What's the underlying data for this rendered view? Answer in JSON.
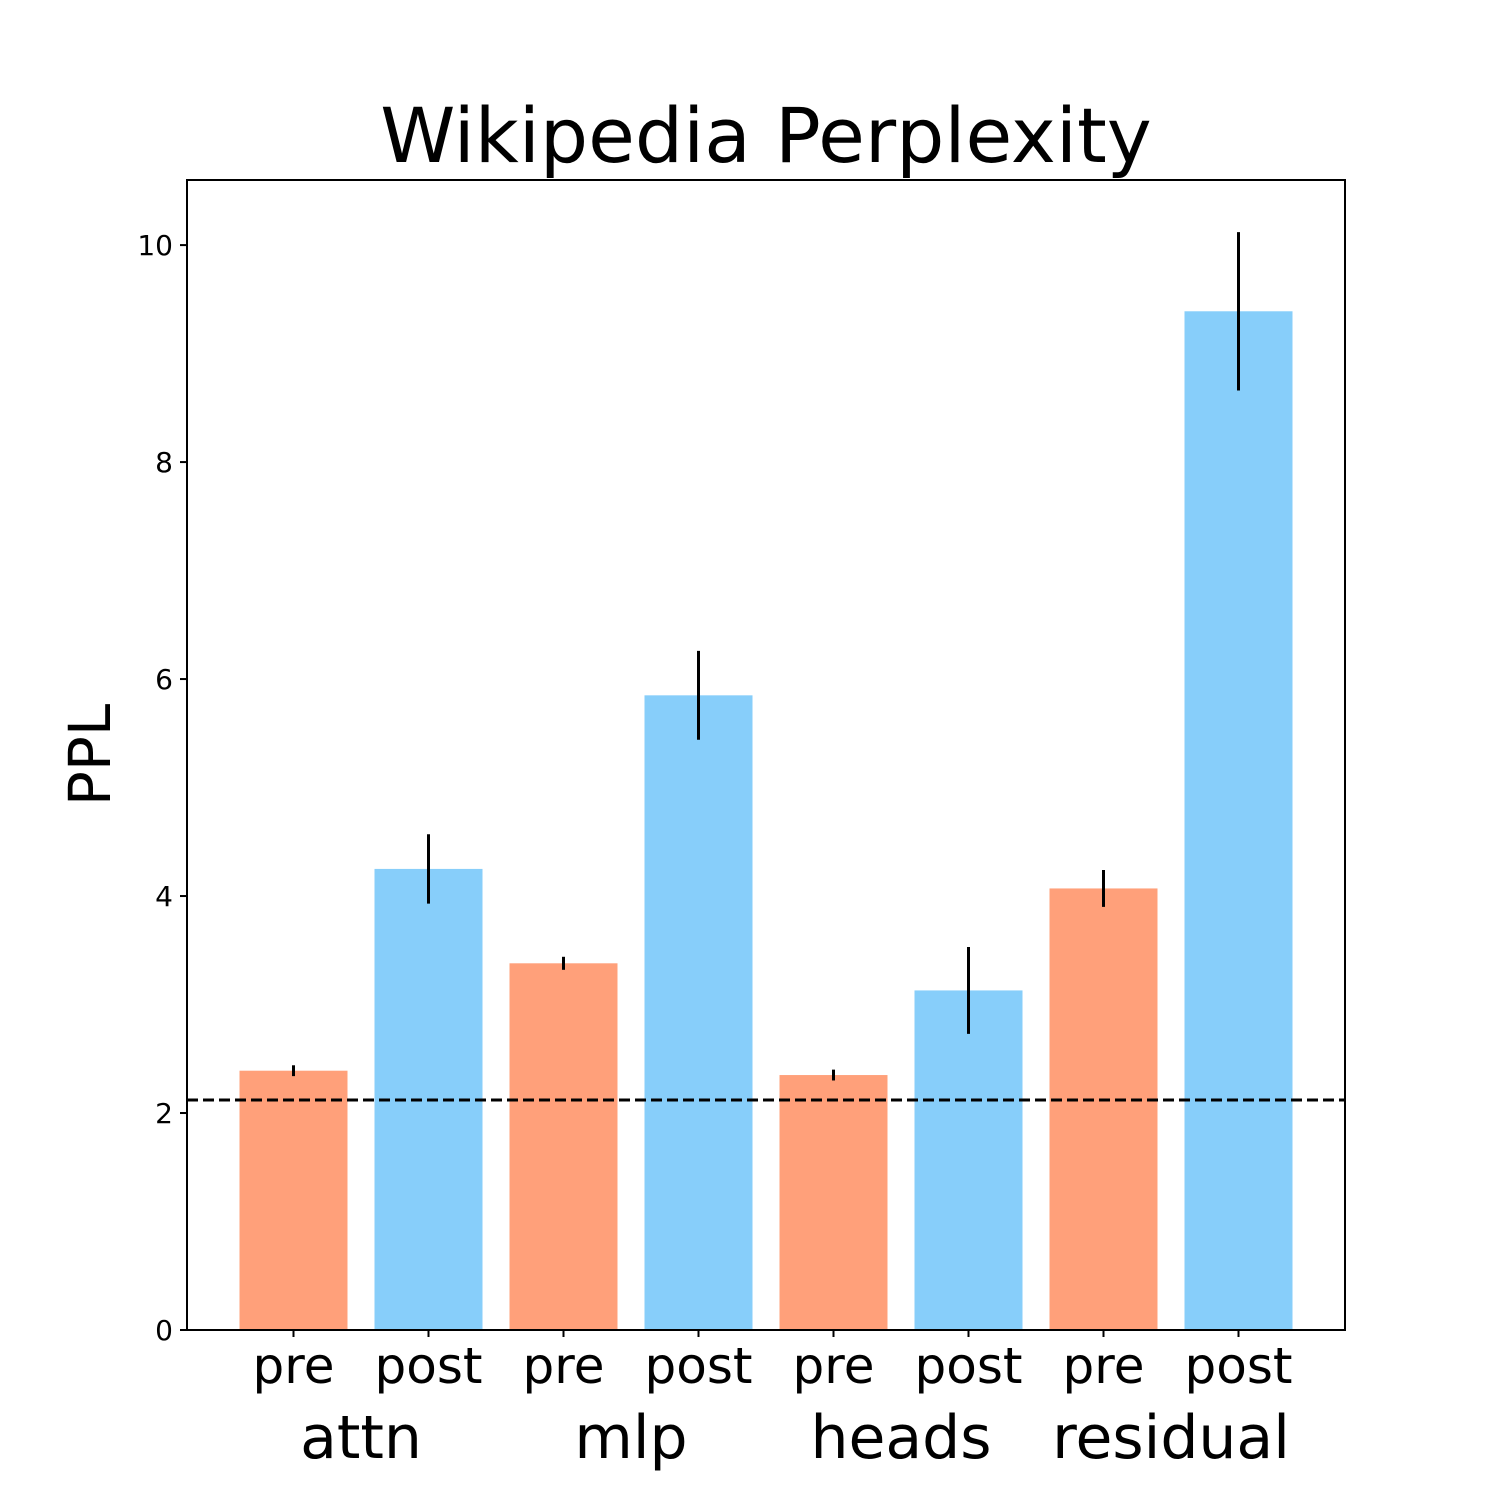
{
  "chart_data": {
    "type": "bar",
    "title": "Wikipedia Perplexity",
    "xlabel": "",
    "ylabel": "PPL",
    "ylim": [
      0,
      10.6
    ],
    "yticks": [
      0,
      2,
      4,
      6,
      8,
      10
    ],
    "grid": false,
    "legend": "none",
    "categories": [
      "pre",
      "post",
      "pre",
      "post",
      "pre",
      "post",
      "pre",
      "post"
    ],
    "groups": [
      "attn",
      "mlp",
      "heads",
      "residual"
    ],
    "group_of_bar": [
      0,
      0,
      1,
      1,
      2,
      2,
      3,
      3
    ],
    "values": [
      2.39,
      4.25,
      3.38,
      5.85,
      2.35,
      3.13,
      4.07,
      9.39
    ],
    "errors": [
      0.05,
      0.32,
      0.06,
      0.41,
      0.05,
      0.4,
      0.17,
      0.73
    ],
    "bar_colors": [
      "#FFA07A",
      "#87CEFA",
      "#FFA07A",
      "#87CEFA",
      "#FFA07A",
      "#87CEFA",
      "#FFA07A",
      "#87CEFA"
    ],
    "reference_line": 2.12,
    "reference_line_color": "#000000",
    "reference_line_style": "dashed"
  }
}
